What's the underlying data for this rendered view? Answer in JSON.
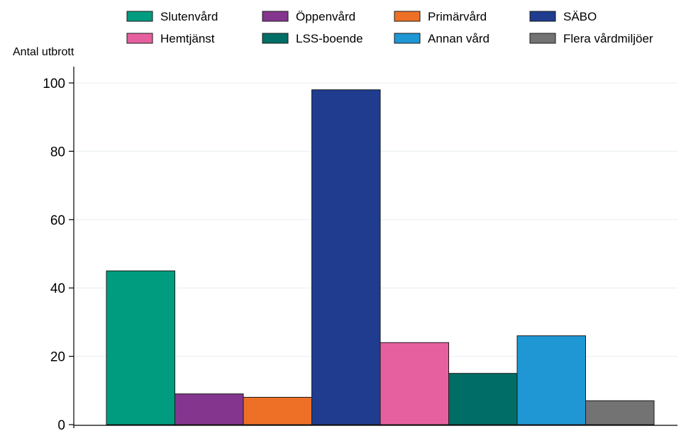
{
  "chart_data": {
    "type": "bar",
    "title": "",
    "xlabel": "",
    "ylabel": "Antal utbrott",
    "ylim": [
      0,
      100
    ],
    "yticks": [
      0,
      20,
      40,
      60,
      80,
      100
    ],
    "grid": true,
    "legend_position": "top",
    "legend_columns": 4,
    "categories": [
      "Slutenvård",
      "Öppenvård",
      "Primärvård",
      "SÄBO",
      "Hemtjänst",
      "LSS-boende",
      "Annan vård",
      "Flera vårdmiljöer"
    ],
    "values": [
      45,
      9,
      8,
      98,
      24,
      15,
      26,
      7
    ],
    "colors": [
      "#009c80",
      "#84368e",
      "#ee7026",
      "#1f3c8f",
      "#e6609f",
      "#006e66",
      "#1f97d5",
      "#737373"
    ]
  }
}
